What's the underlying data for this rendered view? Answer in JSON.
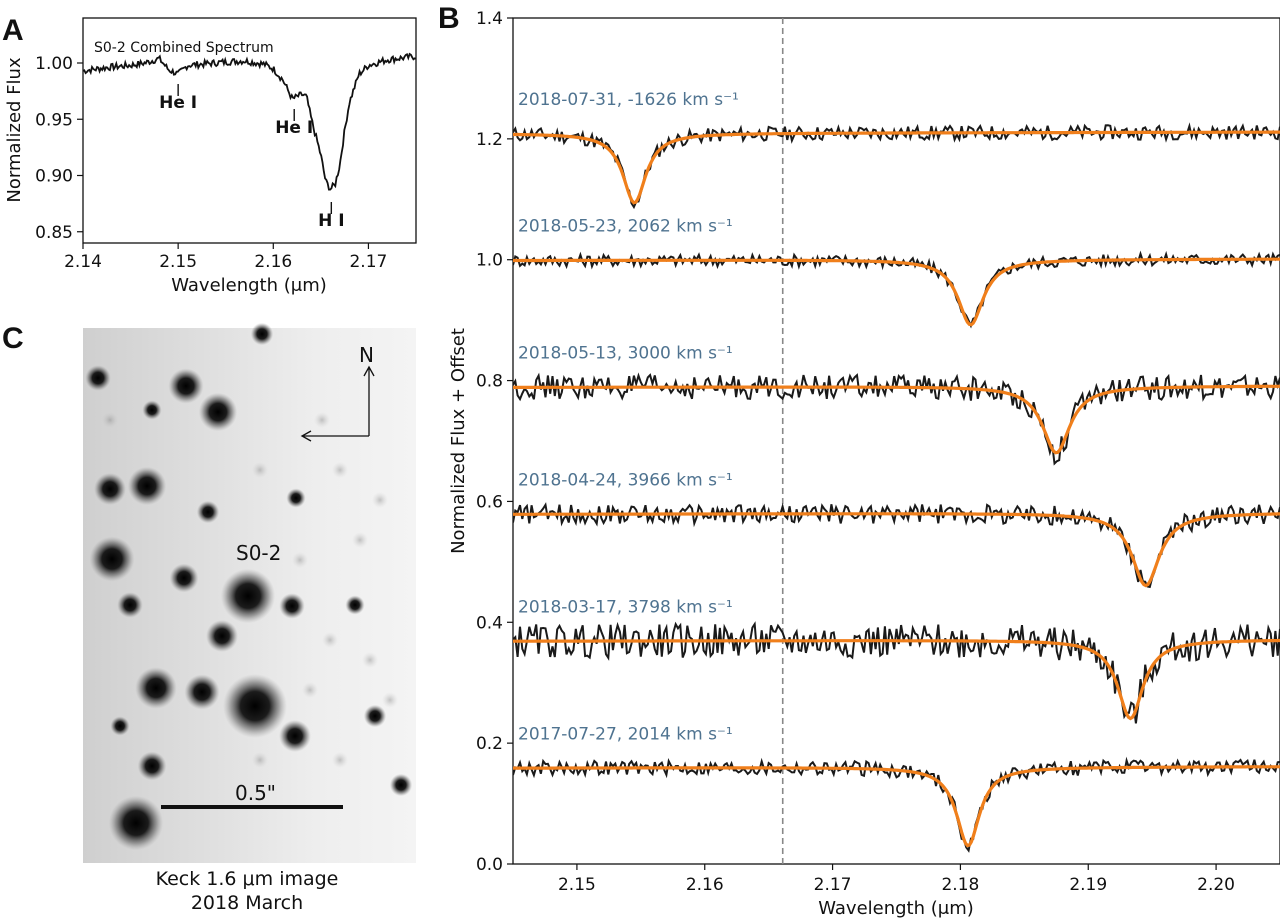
{
  "chart_data": [
    {
      "panel": "A",
      "type": "line",
      "title": "S0-2 Combined Spectrum",
      "xlabel": "Wavelength (μm)",
      "ylabel": "Normalized Flux",
      "xlim": [
        2.14,
        2.175
      ],
      "ylim": [
        0.84,
        1.04
      ],
      "xticks": [
        "2.14",
        "2.15",
        "2.16",
        "2.17"
      ],
      "yticks": [
        "0.85",
        "0.90",
        "0.95",
        "1.00"
      ],
      "series": [
        {
          "x": [
            2.14,
            2.1425,
            2.145,
            2.1465,
            2.148,
            2.149,
            2.15,
            2.151,
            2.1525,
            2.155,
            2.157,
            2.159,
            2.16,
            2.161,
            2.162,
            2.163,
            2.1635,
            2.164,
            2.165,
            2.1655,
            2.166,
            2.1665,
            2.167,
            2.1675,
            2.168,
            2.169,
            2.17,
            2.172,
            2.175
          ],
          "y": [
            0.993,
            0.996,
            0.998,
            1.0,
            1.004,
            0.994,
            0.99,
            0.998,
            0.999,
            1.001,
            1.002,
            0.999,
            0.995,
            0.985,
            0.968,
            0.972,
            0.97,
            0.95,
            0.918,
            0.895,
            0.888,
            0.892,
            0.91,
            0.94,
            0.965,
            0.99,
            0.998,
            1.003,
            1.006
          ]
        }
      ],
      "annotations": [
        {
          "text": "He I",
          "x": 2.15
        },
        {
          "text": "He I",
          "x": 2.1622
        },
        {
          "text": "H I",
          "x": 2.1661
        }
      ]
    },
    {
      "panel": "B",
      "type": "line",
      "xlabel": "Wavelength (μm)",
      "ylabel": "Normalized Flux + Offset",
      "xlim": [
        2.145,
        2.205
      ],
      "ylim": [
        0.0,
        1.4
      ],
      "xticks": [
        "2.15",
        "2.16",
        "2.17",
        "2.18",
        "2.19",
        "2.20"
      ],
      "yticks": [
        "0.0",
        "0.2",
        "0.4",
        "0.6",
        "0.8",
        "1.0",
        "1.2",
        "1.4"
      ],
      "reference_line_x": 2.1661,
      "epochs": [
        {
          "label": "2018-07-31, -1626 km s⁻¹",
          "offset": 1.21,
          "line_center": 2.1545,
          "depth": 0.115,
          "width": 0.0011,
          "noise": 0.012
        },
        {
          "label": "2018-05-23, 2062 km s⁻¹",
          "offset": 1.0,
          "line_center": 2.1808,
          "depth": 0.108,
          "width": 0.0012,
          "noise": 0.01
        },
        {
          "label": "2018-05-13, 3000 km s⁻¹",
          "offset": 0.79,
          "line_center": 2.1875,
          "depth": 0.11,
          "width": 0.0013,
          "noise": 0.02
        },
        {
          "label": "2018-04-24, 3966 km s⁻¹",
          "offset": 0.58,
          "line_center": 2.1945,
          "depth": 0.12,
          "width": 0.0013,
          "noise": 0.016
        },
        {
          "label": "2018-03-17, 3798 km s⁻¹",
          "offset": 0.37,
          "line_center": 2.1933,
          "depth": 0.13,
          "width": 0.0012,
          "noise": 0.028
        },
        {
          "label": "2017-07-27, 2014 km s⁻¹",
          "offset": 0.16,
          "line_center": 2.1806,
          "depth": 0.13,
          "width": 0.0011,
          "noise": 0.012
        }
      ],
      "colors": {
        "data": "#1a1a1a",
        "fit": "#f07f1b",
        "ref_line": "#888888",
        "label": "#4f7390"
      }
    }
  ],
  "image_panel": {
    "panel": "C",
    "star_label": "S0-2",
    "north_label": "N",
    "scale_label": "0.5\"",
    "caption_line1": "Keck 1.6 μm image",
    "caption_line2": "2018 March"
  },
  "panel_letters": {
    "a": "A",
    "b": "B",
    "c": "C"
  }
}
